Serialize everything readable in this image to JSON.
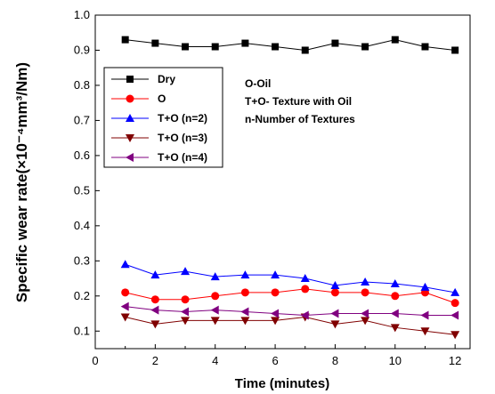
{
  "chart_data": {
    "type": "line",
    "xlabel": "Time (minutes)",
    "ylabel": "Specific wear rate(×10⁻⁴mm³/Nm)",
    "xlim": [
      0,
      12.5
    ],
    "ylim": [
      0.05,
      1.0
    ],
    "x_ticks": [
      0,
      2,
      4,
      6,
      8,
      10,
      12
    ],
    "y_ticks": [
      0.1,
      0.2,
      0.3,
      0.4,
      0.5,
      0.6,
      0.7,
      0.8,
      0.9,
      1.0
    ],
    "grid": false,
    "legend_position": "upper-left",
    "x": [
      1,
      2,
      3,
      4,
      5,
      6,
      7,
      8,
      9,
      10,
      11,
      12
    ],
    "series": [
      {
        "name": "Dry",
        "color": "#000000",
        "marker": "square",
        "values": [
          0.93,
          0.92,
          0.91,
          0.91,
          0.92,
          0.91,
          0.9,
          0.92,
          0.91,
          0.93,
          0.91,
          0.9
        ]
      },
      {
        "name": "O",
        "color": "#ff0000",
        "marker": "circle",
        "values": [
          0.21,
          0.19,
          0.19,
          0.2,
          0.21,
          0.21,
          0.22,
          0.21,
          0.21,
          0.2,
          0.21,
          0.18
        ]
      },
      {
        "name": "T+O (n=2)",
        "color": "#0000ff",
        "marker": "triangle-up",
        "values": [
          0.29,
          0.26,
          0.27,
          0.255,
          0.26,
          0.26,
          0.25,
          0.23,
          0.24,
          0.235,
          0.225,
          0.21
        ]
      },
      {
        "name": "T+O (n=3)",
        "color": "#800000",
        "marker": "triangle-down",
        "values": [
          0.14,
          0.12,
          0.13,
          0.13,
          0.13,
          0.13,
          0.14,
          0.12,
          0.13,
          0.11,
          0.1,
          0.09
        ]
      },
      {
        "name": "T+O (n=4)",
        "color": "#800080",
        "marker": "triangle-left",
        "values": [
          0.17,
          0.16,
          0.155,
          0.16,
          0.155,
          0.15,
          0.145,
          0.15,
          0.15,
          0.15,
          0.145,
          0.145
        ]
      }
    ],
    "annotations": [
      "O-Oil",
      "T+O- Texture with Oil",
      "n-Number of Textures"
    ]
  }
}
